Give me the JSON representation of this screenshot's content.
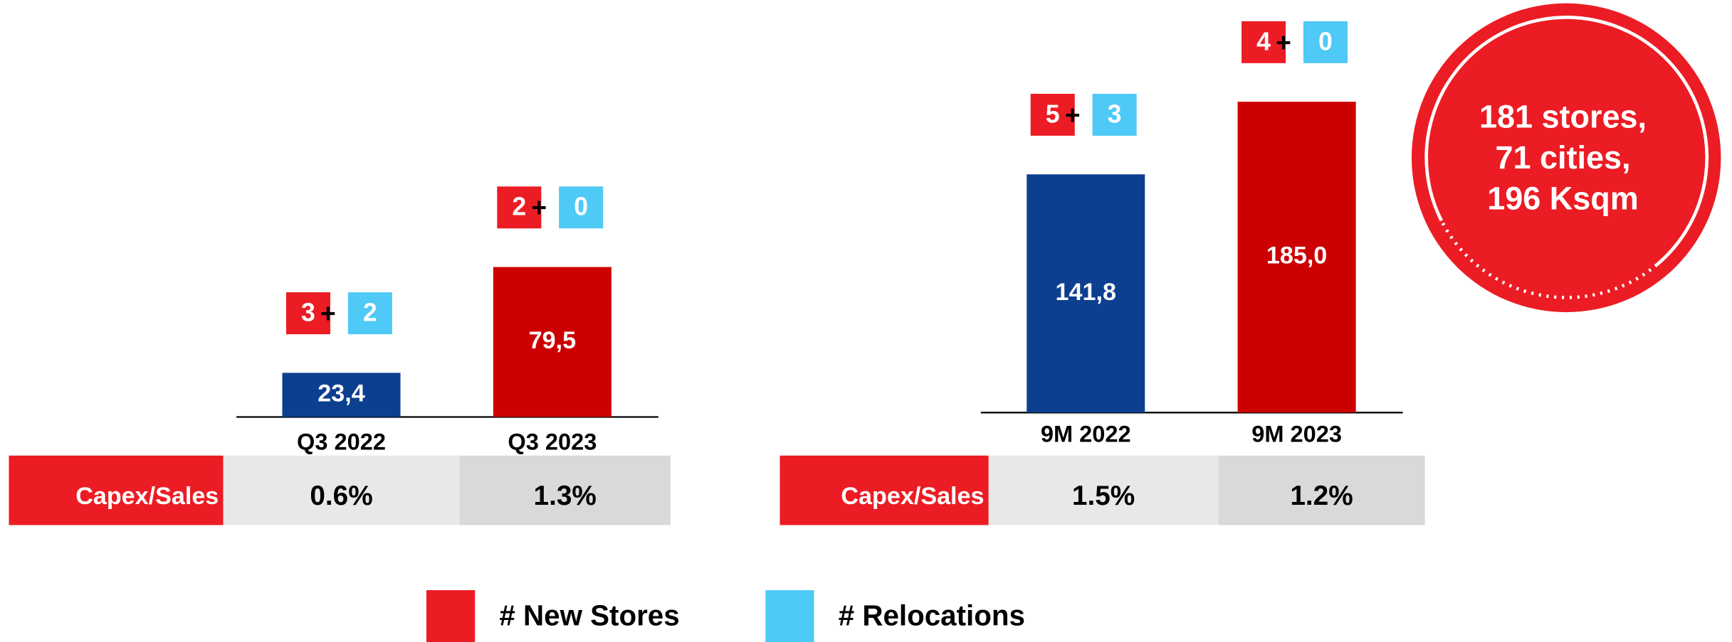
{
  "chart_data": [
    {
      "type": "bar",
      "categories": [
        "Q3 2022",
        "Q3 2023"
      ],
      "values": [
        23.4,
        79.5
      ],
      "value_labels": [
        "23,4",
        "79,5"
      ],
      "colors": [
        "#0d3f91",
        "#cc0000"
      ],
      "new_stores": [
        3,
        2
      ],
      "relocations": [
        2,
        0
      ],
      "separator": "+",
      "capex_label": "Capex/Sales",
      "capex_values": [
        "0.6%",
        "1.3%"
      ]
    },
    {
      "type": "bar",
      "categories": [
        "9M 2022",
        "9M 2023"
      ],
      "values": [
        141.8,
        185.0
      ],
      "value_labels": [
        "141,8",
        "185,0"
      ],
      "colors": [
        "#0d3f91",
        "#cc0000"
      ],
      "new_stores": [
        5,
        4
      ],
      "relocations": [
        3,
        0
      ],
      "separator": "+",
      "capex_label": "Capex/Sales",
      "capex_values": [
        "1.5%",
        "1.2%"
      ]
    }
  ],
  "callout": {
    "lines": [
      "181 stores,",
      "71 cities,",
      "196 Ksqm"
    ],
    "color": "#ec1c24"
  },
  "legend": [
    {
      "name": "# New Stores",
      "color": "#ec1c24"
    },
    {
      "name": "# Relocations",
      "color": "#4fc9f6"
    }
  ]
}
